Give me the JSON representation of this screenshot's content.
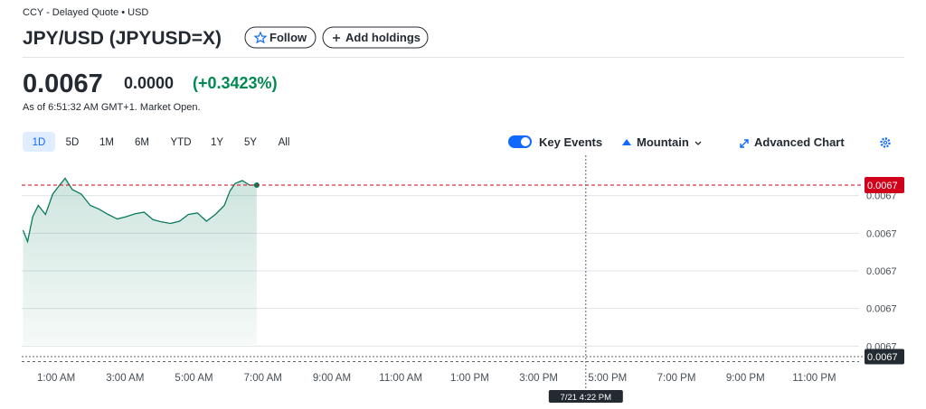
{
  "header": {
    "exchange": "CCY - Delayed Quote • USD",
    "title": "JPY/USD (JPYUSD=X)",
    "follow": "Follow",
    "add_holdings": "Add holdings"
  },
  "quote": {
    "price": "0.0067",
    "change": "0.0000",
    "change_pct": "(+0.3423%)",
    "as_of": "As of 6:51:32 AM GMT+1. Market Open."
  },
  "toolbar": {
    "ranges": [
      "1D",
      "5D",
      "1M",
      "6M",
      "YTD",
      "1Y",
      "5Y",
      "All"
    ],
    "key_events": "Key Events",
    "chart_style": "Mountain",
    "advanced": "Advanced Chart"
  },
  "chart_data": {
    "type": "line",
    "color": "#0b7a5a",
    "x": [
      0.04,
      0.17,
      0.32,
      0.48,
      0.69,
      0.9,
      1.1,
      1.26,
      1.47,
      1.73,
      1.99,
      2.25,
      2.51,
      2.77,
      3.03,
      3.29,
      3.55,
      3.81,
      4.06,
      4.32,
      4.58,
      4.84,
      5.1,
      5.36,
      5.62,
      5.88,
      6.04,
      6.19,
      6.4,
      6.61,
      6.82
    ],
    "values": [
      0.0066954,
      0.0066939,
      0.0066972,
      0.0066987,
      0.0066975,
      0.0067002,
      0.0067014,
      0.0067023,
      0.0067008,
      0.0067002,
      0.0066987,
      0.0066982,
      0.0066975,
      0.0066969,
      0.0066972,
      0.0066976,
      0.0066978,
      0.0066968,
      0.0066965,
      0.0066963,
      0.0066966,
      0.0066975,
      0.0066977,
      0.0066966,
      0.0066975,
      0.0066987,
      0.0067006,
      0.0067016,
      0.006702,
      0.0067014,
      0.0067014
    ],
    "xlim": [
      0,
      24.3
    ],
    "xticks": [
      {
        "value": 1,
        "label": "1:00 AM"
      },
      {
        "value": 3,
        "label": "3:00 AM"
      },
      {
        "value": 5,
        "label": "5:00 AM"
      },
      {
        "value": 7,
        "label": "7:00 AM"
      },
      {
        "value": 9,
        "label": "9:00 AM"
      },
      {
        "value": 11,
        "label": "11:00 AM"
      },
      {
        "value": 13,
        "label": "1:00 PM"
      },
      {
        "value": 15,
        "label": "3:00 PM"
      },
      {
        "value": 17,
        "label": "5:00 PM"
      },
      {
        "value": 19,
        "label": "7:00 PM"
      },
      {
        "value": 21,
        "label": "9:00 PM"
      },
      {
        "value": 23,
        "label": "11:00 PM"
      }
    ],
    "ylim": [
      0.006678,
      0.0067038
    ],
    "yticks": [
      0.0067,
      {
        "value": 0.006695,
        "label": "0.0067"
      },
      {
        "value": 0.00669,
        "label": "0.0067"
      },
      {
        "value": 0.006685,
        "label": "0.0067"
      },
      {
        "value": 0.00668,
        "label": "0.0067"
      }
    ],
    "grid": true,
    "current_price": {
      "value": 0.0067014,
      "label": "0.0067"
    },
    "crosshair": {
      "x": {
        "value": 16.37,
        "label": "7/21 4:22 PM"
      },
      "y": {
        "value": 0.0066786,
        "label": "0.0067"
      }
    }
  }
}
